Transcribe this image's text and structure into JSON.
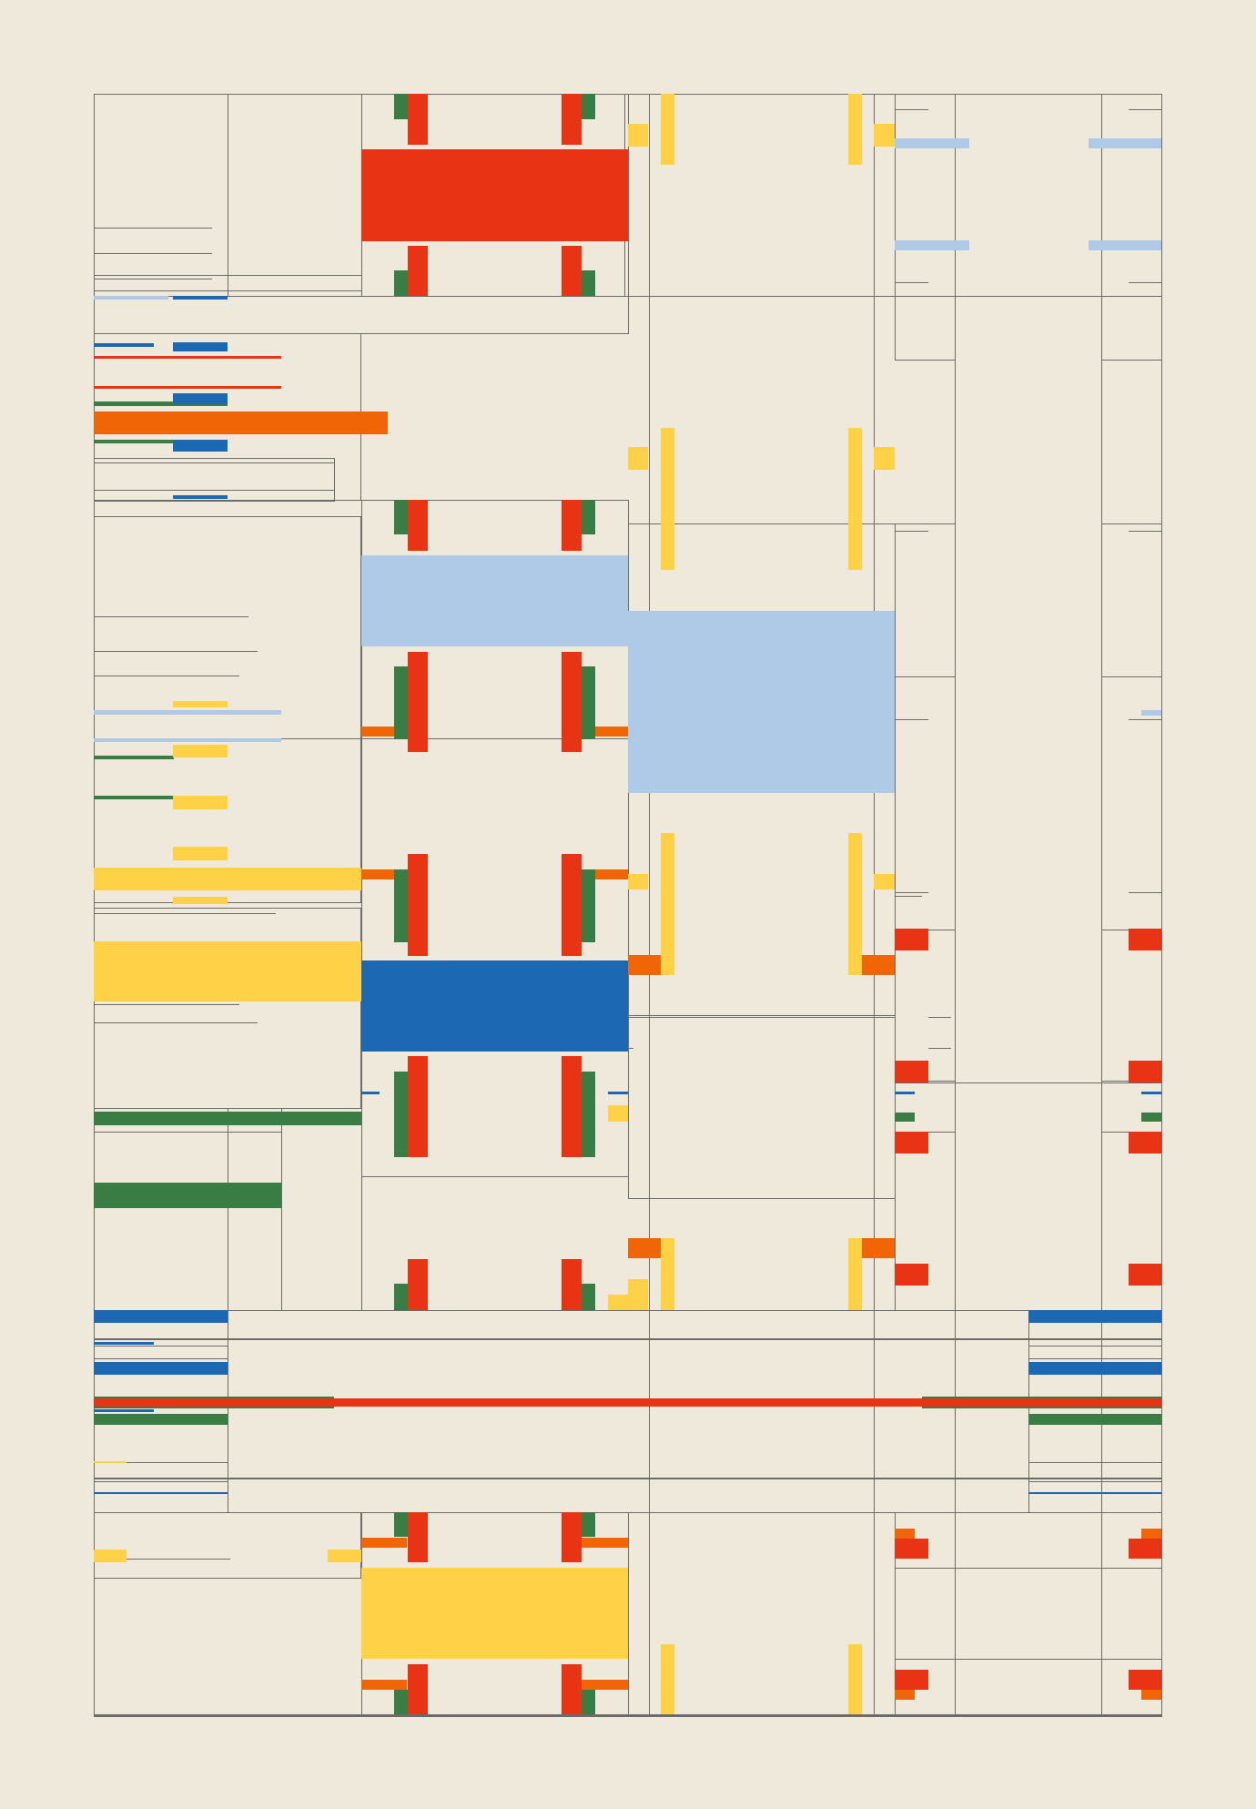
{
  "artwork": {
    "background": "#efe9dc",
    "line_color": "#6b6b6b",
    "palette": {
      "red": "#e83315",
      "blue": "#1c68b2",
      "light_blue": "#aecae6",
      "yellow": "#ffd146",
      "orange": "#f06606",
      "green": "#3a7d44"
    }
  }
}
